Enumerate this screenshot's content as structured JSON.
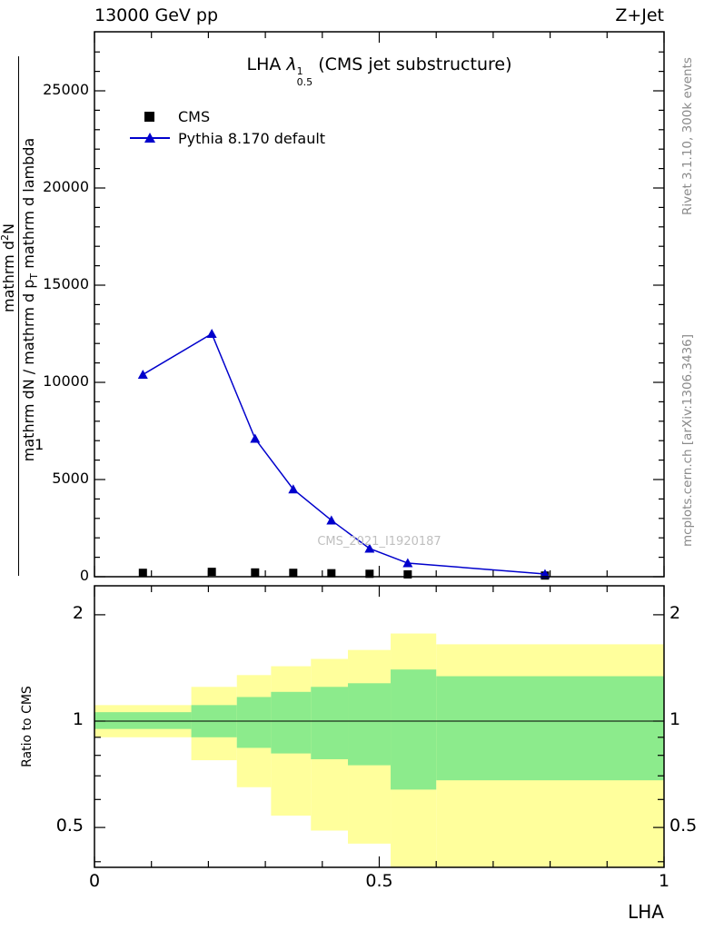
{
  "header": {
    "left": "13000 GeV pp",
    "right": "Z+Jet"
  },
  "side_notes": {
    "rivet": "Rivet 3.1.10,  300k events",
    "mcplots": "mcplots.cern.ch [arXiv:1306.3436]"
  },
  "main_panel": {
    "title": {
      "prefix": "LHA",
      "lambda": "λ",
      "sup": "1",
      "sub": "0.5",
      "suffix": "(CMS jet substructure)"
    },
    "legend": [
      {
        "label": "CMS",
        "marker": "square",
        "color": "#000000"
      },
      {
        "label": "Pythia 8.170 default",
        "marker": "triangle-line",
        "color": "#0000cc"
      }
    ],
    "watermark": "CMS_2021_I1920187",
    "ylabel": {
      "numerator_pre": "mathrm d",
      "numerator_sup": "2",
      "numerator_post": "N",
      "one": "1",
      "denominator_pre": "mathrm dN / mathrm d p",
      "denominator_sub": "T",
      "denominator_post": " mathrm d lambda"
    }
  },
  "ratio_panel": {
    "ylabel": "Ratio to CMS"
  },
  "xaxis": {
    "label": "LHA"
  },
  "chart_data": {
    "type": "line",
    "title": "LHA λ^1_0.5 (CMS jet substructure)",
    "xlabel": "LHA",
    "ylabel": "mathrm d²N / mathrm d p_T mathrm d lambda",
    "grid": false,
    "legend_position": "top-left",
    "xlim": [
      0,
      1
    ],
    "xticks": [
      0,
      0.5,
      1
    ],
    "xticks_minor_step": 0.1,
    "x": [
      0.085,
      0.206,
      0.282,
      0.349,
      0.416,
      0.483,
      0.55,
      0.791
    ],
    "main": {
      "ylim": [
        0,
        28000
      ],
      "yticks": [
        0,
        5000,
        10000,
        15000,
        20000,
        25000
      ],
      "ytick_minor_step": 1000,
      "series": [
        {
          "name": "CMS",
          "style": "scatter-square",
          "color": "#000000",
          "values": [
            200,
            250,
            220,
            200,
            180,
            150,
            120,
            60
          ]
        },
        {
          "name": "Pythia 8.170 default",
          "style": "line-triangle",
          "color": "#0000cc",
          "values": [
            10400,
            12500,
            7100,
            4500,
            2900,
            1450,
            700,
            140
          ]
        }
      ]
    },
    "ratio": {
      "scale": "log",
      "ylim": [
        0.386,
        2.414
      ],
      "yticks": [
        0.5,
        1,
        2
      ],
      "yticks_minor": [
        0.4,
        0.6,
        0.7,
        0.8,
        0.9
      ],
      "baseline": 1,
      "band_edges": [
        0,
        0.17,
        0.25,
        0.31,
        0.38,
        0.445,
        0.52,
        0.6,
        1.0
      ],
      "bands": {
        "yellow": {
          "color": "#ffff9c",
          "lo": [
            0.9,
            0.775,
            0.65,
            0.54,
            0.49,
            0.45,
            0.36,
            0.36
          ],
          "hi": [
            1.11,
            1.25,
            1.35,
            1.43,
            1.5,
            1.59,
            1.77,
            1.65
          ]
        },
        "green": {
          "color": "#8ceb8c",
          "lo": [
            0.95,
            0.9,
            0.84,
            0.81,
            0.78,
            0.75,
            0.64,
            0.68
          ],
          "hi": [
            1.06,
            1.11,
            1.17,
            1.21,
            1.25,
            1.28,
            1.4,
            1.34
          ]
        }
      }
    }
  }
}
